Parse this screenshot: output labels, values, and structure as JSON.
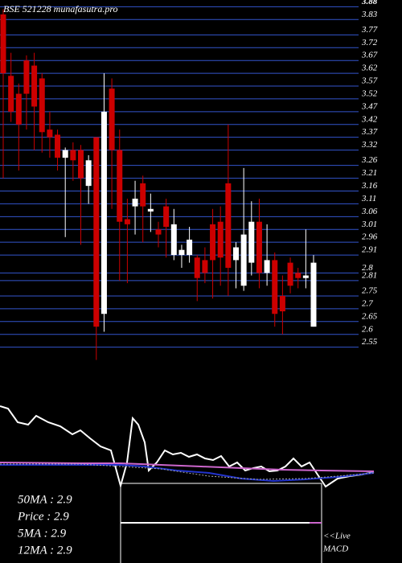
{
  "chart_data": {
    "type": "candlestick",
    "title": "BSE 521228 munafasutra.pro",
    "up_color": "#ffffff",
    "down_color": "#cc0000",
    "grid_color": "#3355cc",
    "grid": true,
    "ylim": [
      2.53,
      3.9
    ],
    "yticks": [
      3.88,
      3.83,
      3.77,
      3.72,
      3.67,
      3.62,
      3.57,
      3.52,
      3.47,
      3.42,
      3.37,
      3.32,
      3.26,
      3.21,
      3.16,
      3.11,
      3.06,
      3.01,
      2.96,
      2.91,
      {
        "value": 2.84,
        "label": "2.8"
      },
      2.81,
      2.75,
      2.7,
      2.65,
      2.6,
      2.55
    ],
    "open": [
      3.85,
      3.61,
      3.54,
      3.67,
      3.65,
      3.6,
      3.4,
      3.38,
      3.29,
      3.32,
      3.32,
      3.18,
      3.37,
      2.68,
      3.56,
      3.32,
      3.05,
      3.1,
      3.19,
      3.08,
      3.01,
      3.1,
      2.91,
      2.91,
      2.91,
      2.9,
      2.89,
      3.03,
      3.04,
      3.19,
      2.89,
      2.79,
      2.88,
      3.04,
      2.84,
      2.89,
      2.75,
      2.88,
      2.84,
      2.82,
      2.63
    ],
    "high": [
      3.87,
      3.7,
      3.58,
      3.69,
      3.7,
      3.62,
      3.47,
      3.4,
      3.33,
      3.35,
      3.34,
      3.3,
      3.37,
      3.62,
      3.6,
      3.4,
      3.13,
      3.2,
      3.22,
      3.15,
      3.04,
      3.13,
      3.09,
      2.95,
      3.02,
      2.91,
      2.94,
      3.09,
      3.1,
      3.42,
      2.96,
      3.25,
      3.12,
      3.13,
      3.03,
      2.92,
      2.83,
      2.9,
      2.86,
      3.01,
      2.91
    ],
    "low": [
      3.21,
      3.43,
      3.24,
      3.4,
      3.32,
      3.31,
      3.29,
      3.24,
      2.98,
      3.2,
      2.95,
      3.11,
      2.5,
      2.61,
      3.09,
      2.81,
      2.8,
      2.99,
      2.96,
      3.0,
      2.94,
      2.9,
      2.89,
      2.86,
      2.88,
      2.73,
      2.8,
      2.74,
      2.79,
      2.75,
      2.78,
      2.77,
      2.83,
      2.78,
      2.79,
      2.63,
      2.6,
      2.76,
      2.78,
      2.78,
      2.63
    ],
    "close": [
      3.62,
      3.47,
      3.42,
      3.54,
      3.49,
      3.39,
      3.37,
      3.29,
      3.32,
      3.28,
      3.21,
      3.28,
      2.63,
      3.47,
      3.32,
      3.04,
      3.03,
      3.13,
      3.1,
      3.09,
      2.99,
      3.02,
      3.03,
      2.93,
      2.97,
      2.82,
      2.84,
      2.89,
      2.9,
      2.86,
      2.94,
      2.99,
      3.04,
      2.84,
      2.89,
      2.68,
      2.69,
      2.79,
      2.82,
      2.83,
      2.88
    ],
    "stats": [
      "50MA : 2.9",
      "Price  : 2.9",
      "5MA : 2.9",
      "12MA : 2.9"
    ],
    "live_label": "<<Live",
    "macd_label": "MACD"
  }
}
